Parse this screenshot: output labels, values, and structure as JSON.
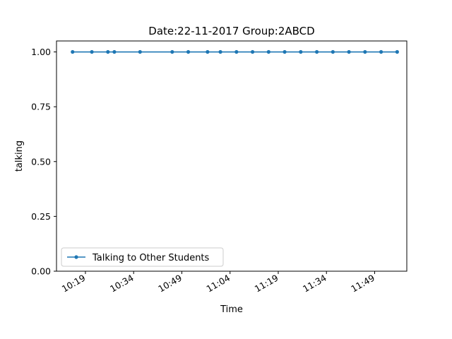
{
  "chart_data": {
    "type": "line",
    "title": "Date:22-11-2017  Group:2ABCD",
    "xlabel": "Time",
    "ylabel": "talking",
    "x_tick_labels": [
      "10:19",
      "10:34",
      "10:49",
      "11:04",
      "11:19",
      "11:34",
      "11:49"
    ],
    "y_tick_labels": [
      "0.00",
      "0.25",
      "0.50",
      "0.75",
      "1.00"
    ],
    "y_ticks": [
      0.0,
      0.25,
      0.5,
      0.75,
      1.0
    ],
    "ylim": [
      0.0,
      1.05
    ],
    "xlim": [
      "10:10",
      "11:59"
    ],
    "x_tick_times": [
      "10:19",
      "10:34",
      "10:49",
      "11:04",
      "11:19",
      "11:34",
      "11:49"
    ],
    "grid": false,
    "legend_position": "lower-left",
    "series": [
      {
        "name": "Talking to Other Students",
        "color": "#1f77b4",
        "marker": "dot",
        "x": [
          "10:15",
          "10:21",
          "10:26",
          "10:28",
          "10:36",
          "10:46",
          "10:51",
          "10:57",
          "11:01",
          "11:06",
          "11:11",
          "11:16",
          "11:21",
          "11:26",
          "11:31",
          "11:36",
          "11:41",
          "11:46",
          "11:51",
          "11:56"
        ],
        "values": [
          1,
          1,
          1,
          1,
          1,
          1,
          1,
          1,
          1,
          1,
          1,
          1,
          1,
          1,
          1,
          1,
          1,
          1,
          1,
          1
        ]
      }
    ]
  }
}
